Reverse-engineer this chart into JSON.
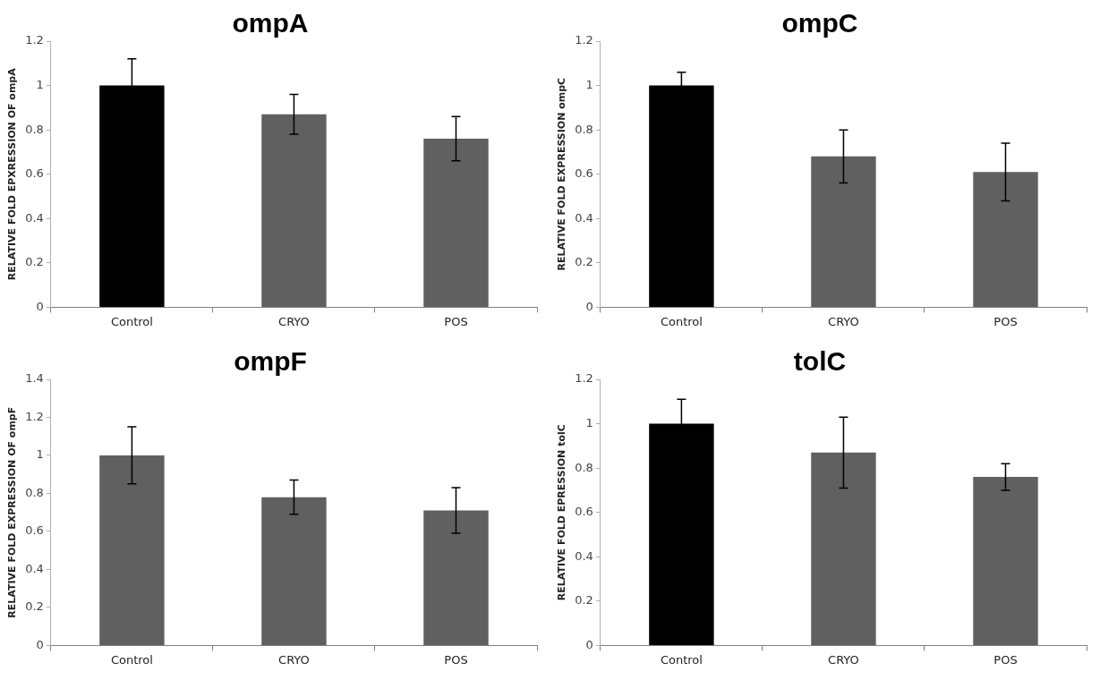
{
  "chart_data": [
    {
      "type": "bar",
      "title": "ompA",
      "ylabel": "RELATIVE FOLD EPXRESSION OF ompA",
      "categories": [
        "Control",
        "CRYO",
        "POS"
      ],
      "values": [
        1,
        0.87,
        0.76
      ],
      "errors": [
        0.12,
        0.09,
        0.1
      ],
      "colors": [
        "#000000",
        "#606060",
        "#606060"
      ],
      "ylim": [
        0,
        1.2
      ],
      "yticks": [
        0,
        0.2,
        0.4,
        0.6,
        0.8,
        1,
        1.2
      ],
      "grid": false
    },
    {
      "type": "bar",
      "title": "ompC",
      "ylabel": "RELATIVE FOLD EXPRESSION ompC",
      "categories": [
        "Control",
        "CRYO",
        "POS"
      ],
      "values": [
        1,
        0.68,
        0.61
      ],
      "errors": [
        0.06,
        0.12,
        0.13
      ],
      "colors": [
        "#000000",
        "#606060",
        "#606060"
      ],
      "ylim": [
        0,
        1.2
      ],
      "yticks": [
        0,
        0.2,
        0.4,
        0.6,
        0.8,
        1,
        1.2
      ],
      "grid": false
    },
    {
      "type": "bar",
      "title": "ompF",
      "ylabel": "RELATIVE FOLD EXPRESSION OF ompF",
      "categories": [
        "Control",
        "CRYO",
        "POS"
      ],
      "values": [
        1,
        0.78,
        0.71
      ],
      "errors": [
        0.15,
        0.09,
        0.12
      ],
      "colors": [
        "#606060",
        "#606060",
        "#606060"
      ],
      "ylim": [
        0,
        1.4
      ],
      "yticks": [
        0,
        0.2,
        0.4,
        0.6,
        0.8,
        1,
        1.2,
        1.4
      ],
      "grid": false
    },
    {
      "type": "bar",
      "title": "tolC",
      "ylabel": "RELATIVE FOLD EPRESSION tolC",
      "categories": [
        "Control",
        "CRYO",
        "POS"
      ],
      "values": [
        1,
        0.87,
        0.76
      ],
      "errors": [
        0.11,
        0.16,
        0.06
      ],
      "colors": [
        "#000000",
        "#606060",
        "#606060"
      ],
      "ylim": [
        0,
        1.2
      ],
      "yticks": [
        0,
        0.2,
        0.4,
        0.6,
        0.8,
        1,
        1.2
      ],
      "grid": false
    }
  ]
}
